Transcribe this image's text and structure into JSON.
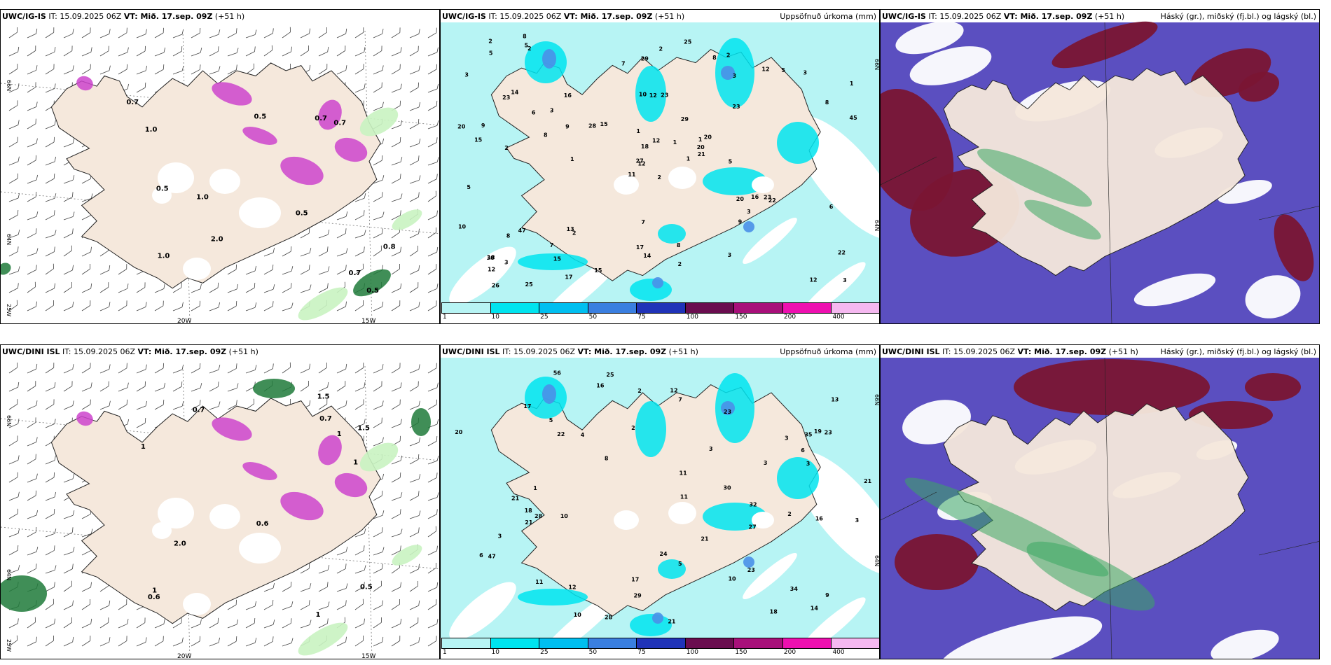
{
  "colors": {
    "land": "#f5e8dc",
    "sea_precip": "#b7f4f4",
    "cyan": "#00e4ef",
    "blue": "#4a90e8",
    "purple": "#5b4fc0",
    "maroon": "#7a1533",
    "green_light": "#c9f3c1",
    "green_dark": "#1f7a3a",
    "magenta": "#cc44cc"
  },
  "panels": [
    {
      "id": "igis-wind",
      "model": "UWC/IG-IS",
      "it_label": "IT: 15.09.2025 06Z",
      "vt_label": "VT: Mið. 17.sep. 09Z",
      "lead": "(+51 h)",
      "right": "",
      "lon_labels": [
        "20W",
        "15W"
      ],
      "lat_labels": [
        "66N",
        "64N",
        "25W"
      ],
      "values": [
        "0.5",
        "0.5",
        "0.5",
        "0.7",
        "0.8",
        "1.0",
        "1.0",
        "1.0",
        "0.7",
        "0.5",
        "0.7",
        "0.7",
        "2.0"
      ]
    },
    {
      "id": "igis-precip",
      "model": "UWC/IG-IS",
      "it_label": "IT: 15.09.2025 06Z",
      "vt_label": "VT: Mið. 17.sep. 09Z",
      "lead": "(+51 h)",
      "right": "Uppsöfnuð úrkoma (mm)",
      "lat_labels": [
        "66N",
        "64N"
      ],
      "values": [
        "2",
        "23",
        "12",
        "18",
        "1",
        "2",
        "2",
        "23",
        "3",
        "1",
        "2",
        "3",
        "2",
        "1",
        "11",
        "23",
        "25",
        "10",
        "29",
        "47",
        "15",
        "12",
        "15",
        "12",
        "20",
        "22",
        "14",
        "29",
        "15",
        "20",
        "45",
        "27",
        "17",
        "18",
        "16",
        "12",
        "13",
        "12",
        "22",
        "23",
        "25",
        "28",
        "8",
        "9",
        "17",
        "20",
        "20",
        "26",
        "14",
        "21",
        "8",
        "8",
        "3",
        "3",
        "3",
        "7",
        "5",
        "2",
        "8",
        "3",
        "2",
        "1",
        "9",
        "3",
        "5",
        "8",
        "8",
        "7",
        "12",
        "10",
        "7",
        "15",
        "16",
        "9",
        "30",
        "5",
        "6",
        "5",
        "1",
        "2",
        "1",
        "3",
        "5",
        "6"
      ],
      "legend": [
        "1",
        "10",
        "25",
        "50",
        "75",
        "100",
        "150",
        "200",
        "400"
      ]
    },
    {
      "id": "igis-cloud",
      "model": "UWC/IG-IS",
      "it_label": "IT: 15.09.2025 06Z",
      "vt_label": "VT: Mið. 17.sep. 09Z",
      "lead": "(+51 h)",
      "right": "Háský (gr.), miðský (fj.bl.) og lágský (bl.)"
    },
    {
      "id": "dini-wind",
      "model": "UWC/DINI ISL",
      "it_label": "IT: 15.09.2025 06Z",
      "vt_label": "VT: Mið. 17.sep. 09Z",
      "lead": "(+51 h)",
      "right": "",
      "lon_labels": [
        "20W",
        "15W"
      ],
      "lat_labels": [
        "66N",
        "64N",
        "25W"
      ],
      "values": [
        "0.7",
        "1",
        "1",
        "1",
        "1.5",
        "0.6",
        "0.5",
        "0.6",
        "0.7",
        "1",
        "1",
        "1.5",
        "2.0"
      ]
    },
    {
      "id": "dini-precip",
      "model": "UWC/DINI ISL",
      "it_label": "IT: 15.09.2025 06Z",
      "vt_label": "VT: Mið. 17.sep. 09Z",
      "lead": "(+51 h)",
      "right": "Uppsöfnuð úrkoma (mm)",
      "lat_labels": [
        "66N",
        "64N"
      ],
      "values": [
        "3",
        "10",
        "3",
        "2",
        "5",
        "10",
        "11",
        "9",
        "21",
        "30",
        "20",
        "56",
        "47",
        "16",
        "25",
        "18",
        "35",
        "23",
        "22",
        "10",
        "21",
        "23",
        "29",
        "28",
        "27",
        "32",
        "16",
        "18",
        "17",
        "19",
        "21",
        "13",
        "12",
        "21",
        "24",
        "23",
        "28",
        "21",
        "6",
        "5",
        "4",
        "3",
        "11",
        "11",
        "8",
        "7",
        "12",
        "17",
        "14",
        "3",
        "3",
        "6",
        "34",
        "3",
        "2",
        "2",
        "1"
      ],
      "legend": [
        "1",
        "10",
        "25",
        "50",
        "75",
        "100",
        "150",
        "200",
        "400"
      ]
    },
    {
      "id": "dini-cloud",
      "model": "UWC/DINI ISL",
      "it_label": "IT: 15.09.2025 06Z",
      "vt_label": "VT: Mið. 17.sep. 09Z",
      "lead": "(+51 h)",
      "right": "Háský (gr.), miðský (fj.bl.) og lágský (bl.)"
    }
  ],
  "legend_colors": [
    "#b7f4f4",
    "#00e4ef",
    "#00bff0",
    "#3a7fe0",
    "#2033b8",
    "#6a0d4f",
    "#a8107a",
    "#ee10b0",
    "#f5b8f0"
  ]
}
